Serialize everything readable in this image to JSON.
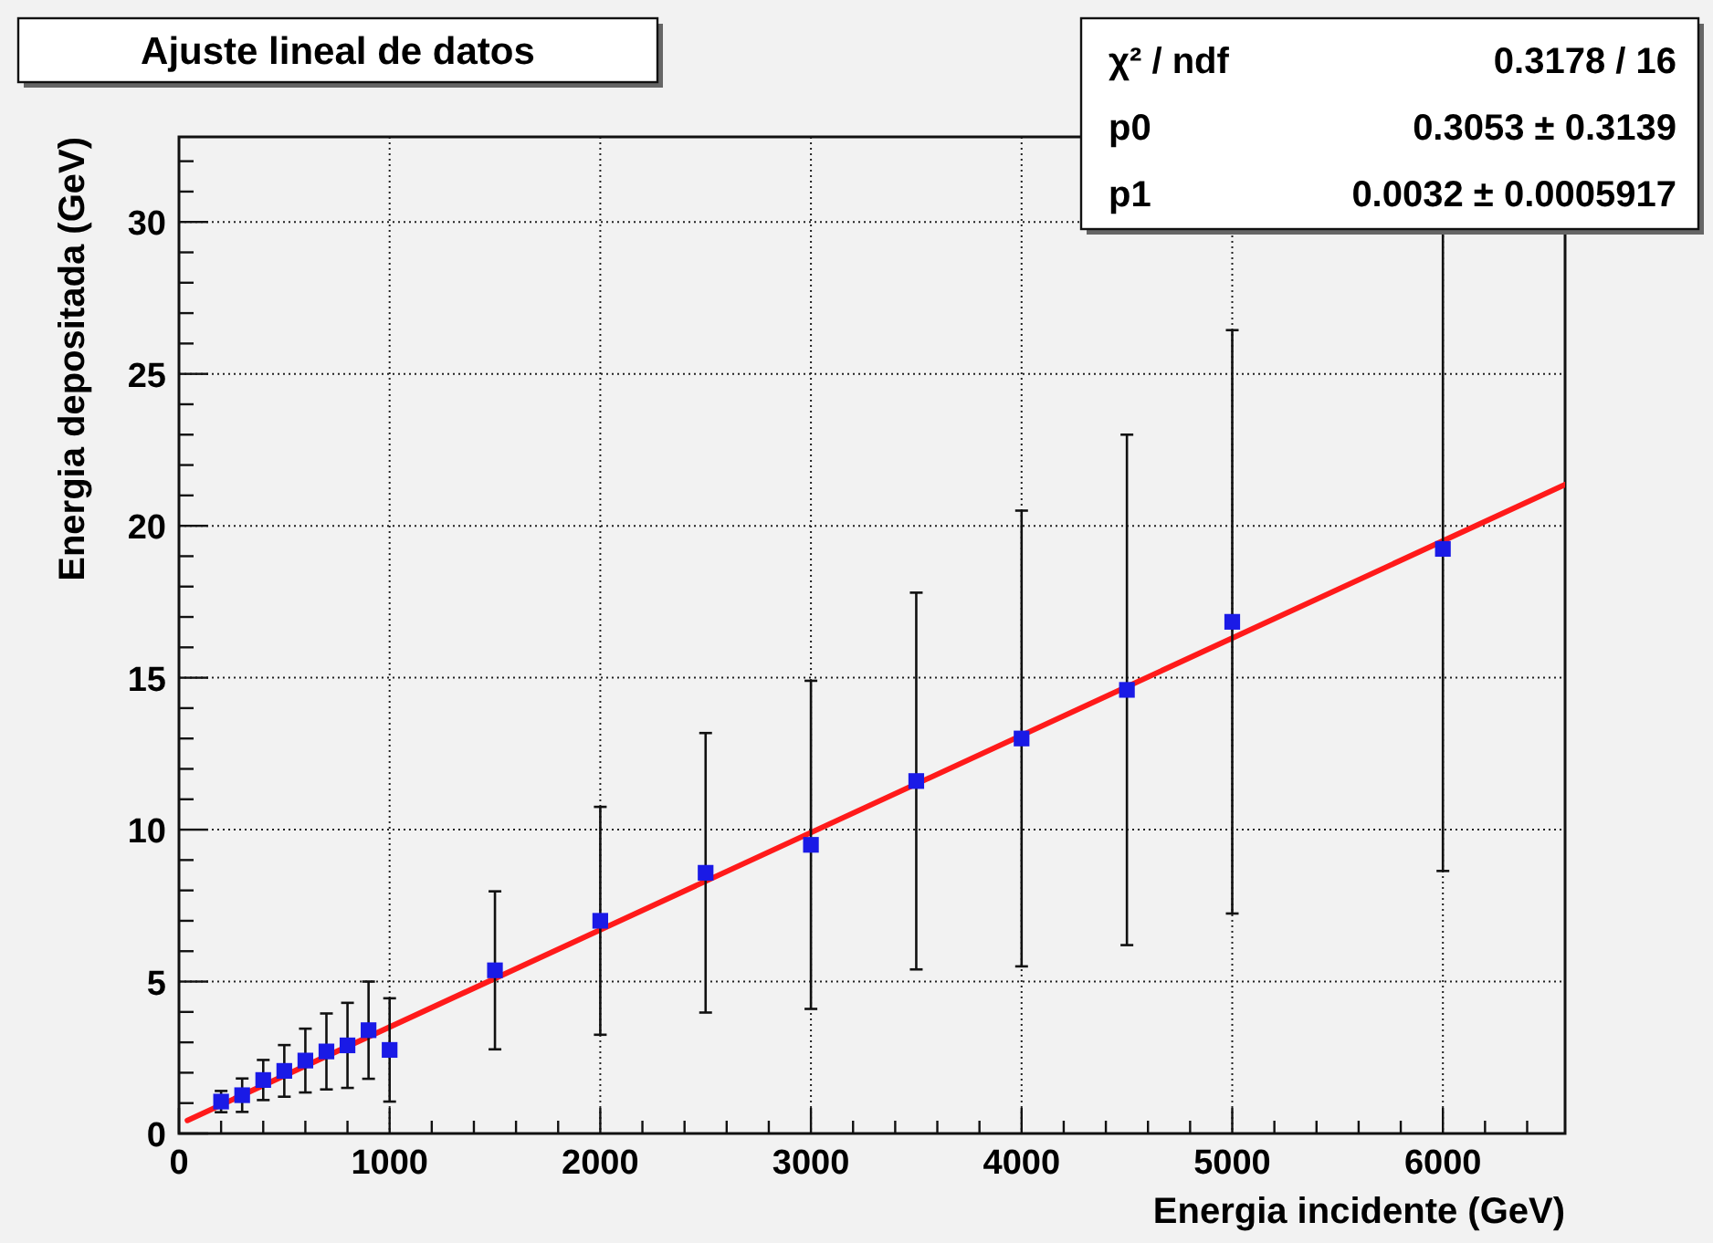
{
  "chart_data": {
    "type": "scatter",
    "title": "Ajuste lineal de datos",
    "xlabel": "Energia incidente (GeV)",
    "ylabel": "Energia depositada (GeV)",
    "xlim": [
      0,
      6580
    ],
    "ylim": [
      0,
      32.8
    ],
    "xticks": [
      0,
      {
        "value": 200,
        "label": null
      },
      {
        "value": 400,
        "label": null
      },
      {
        "value": 600,
        "label": null
      },
      {
        "value": 800,
        "label": null
      },
      1000,
      {
        "value": 1200,
        "label": null
      },
      {
        "value": 1400,
        "label": null
      },
      {
        "value": 1600,
        "label": null
      },
      {
        "value": 1800,
        "label": null
      },
      2000,
      {
        "value": 2200,
        "label": null
      },
      {
        "value": 2400,
        "label": null
      },
      {
        "value": 2600,
        "label": null
      },
      {
        "value": 2800,
        "label": null
      },
      3000,
      {
        "value": 3200,
        "label": null
      },
      {
        "value": 3400,
        "label": null
      },
      {
        "value": 3600,
        "label": null
      },
      {
        "value": 3800,
        "label": null
      },
      4000,
      {
        "value": 4200,
        "label": null
      },
      {
        "value": 4400,
        "label": null
      },
      {
        "value": 4600,
        "label": null
      },
      {
        "value": 4800,
        "label": null
      },
      5000,
      {
        "value": 5200,
        "label": null
      },
      {
        "value": 5400,
        "label": null
      },
      {
        "value": 5600,
        "label": null
      },
      {
        "value": 5800,
        "label": null
      },
      6000,
      {
        "value": 6200,
        "label": null
      },
      {
        "value": 6400,
        "label": null
      }
    ],
    "yticks": [
      0,
      {
        "value": 1,
        "label": null
      },
      {
        "value": 2,
        "label": null
      },
      {
        "value": 3,
        "label": null
      },
      {
        "value": 4,
        "label": null
      },
      5,
      {
        "value": 6,
        "label": null
      },
      {
        "value": 7,
        "label": null
      },
      {
        "value": 8,
        "label": null
      },
      {
        "value": 9,
        "label": null
      },
      10,
      {
        "value": 11,
        "label": null
      },
      {
        "value": 12,
        "label": null
      },
      {
        "value": 13,
        "label": null
      },
      {
        "value": 14,
        "label": null
      },
      15,
      {
        "value": 16,
        "label": null
      },
      {
        "value": 17,
        "label": null
      },
      {
        "value": 18,
        "label": null
      },
      {
        "value": 19,
        "label": null
      },
      20,
      {
        "value": 21,
        "label": null
      },
      {
        "value": 22,
        "label": null
      },
      {
        "value": 23,
        "label": null
      },
      {
        "value": 24,
        "label": null
      },
      25,
      {
        "value": 26,
        "label": null
      },
      {
        "value": 27,
        "label": null
      },
      {
        "value": 28,
        "label": null
      },
      {
        "value": 29,
        "label": null
      },
      30,
      {
        "value": 31,
        "label": null
      },
      {
        "value": 32,
        "label": null
      }
    ],
    "grid": true,
    "series": [
      {
        "marker": "square",
        "color": "#1a1ae6",
        "x": [
          200,
          300,
          400,
          500,
          600,
          700,
          800,
          900,
          1000,
          1500,
          2000,
          2500,
          3000,
          3500,
          4000,
          4500,
          5000,
          6000
        ],
        "values": [
          1.05,
          1.26,
          1.76,
          2.06,
          2.4,
          2.7,
          2.9,
          3.4,
          2.75,
          5.37,
          7.0,
          8.58,
          9.5,
          11.6,
          13.0,
          14.6,
          16.84,
          19.24
        ],
        "errors": [
          0.35,
          0.55,
          0.66,
          0.85,
          1.05,
          1.25,
          1.4,
          1.6,
          1.7,
          2.6,
          3.75,
          4.6,
          5.4,
          6.2,
          7.5,
          8.4,
          9.6,
          10.6
        ]
      },
      {
        "type": "line",
        "color": "#ff1a1a",
        "x": [
          40,
          6580
        ],
        "values": [
          0.43,
          21.36
        ]
      }
    ],
    "annotations": [
      "χ² / ndf",
      "0.3178 / 16",
      "p0",
      "0.3053 ± 0.3139",
      "p1",
      "0.0032 ± 0.0005917"
    ]
  }
}
